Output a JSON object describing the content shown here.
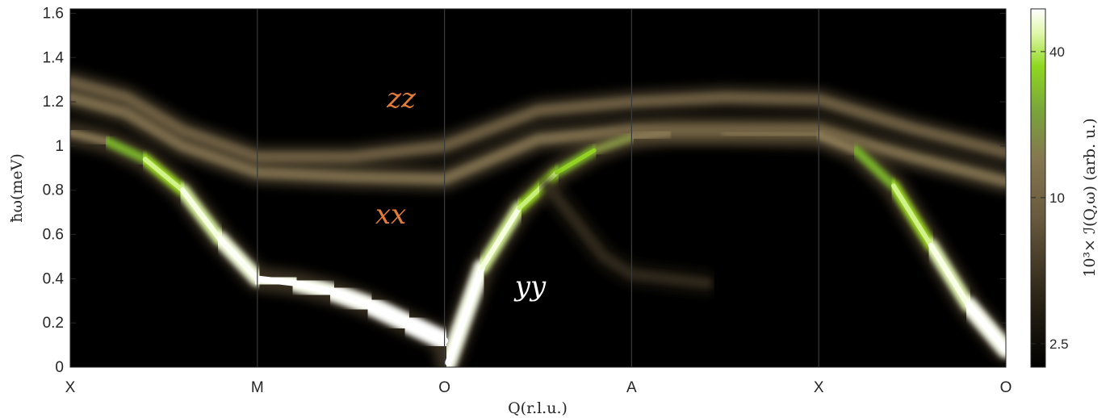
{
  "chart_data": {
    "type": "heatmap",
    "title": "",
    "xlabel": "Q(r.l.u.)",
    "ylabel": "ħω(meV)",
    "ylim": [
      0,
      1.62
    ],
    "y_ticks": [
      "0",
      "0.2",
      "0.4",
      "0.6",
      "0.8",
      "1",
      "1.2",
      "1.4",
      "1.6"
    ],
    "y_tick_values": [
      0,
      0.2,
      0.4,
      0.6,
      0.8,
      1.0,
      1.2,
      1.4,
      1.6
    ],
    "x_ticks": [
      "X",
      "M",
      "O",
      "A",
      "X",
      "O"
    ],
    "grid": "vertical lines at high-symmetry points",
    "colorbar": {
      "label": "10³× ℐ(Q,ω) (arb. u.)",
      "scale": "log",
      "range": [
        2,
        60
      ],
      "ticks": [
        "2.5",
        "10",
        "40"
      ],
      "tick_values": [
        2.5,
        10,
        40
      ],
      "colormap": [
        "#000000",
        "#3a3120",
        "#6e5e42",
        "#8a7a55",
        "#78b02a",
        "#a0e020",
        "#f4ffd8",
        "#ffffff"
      ]
    },
    "series": [
      {
        "name": "xx",
        "label_color": "#e07b39",
        "x": [
          0,
          0.3,
          0.6,
          1.0,
          1.5,
          2.0,
          2.5,
          3.0,
          3.5,
          4.0,
          4.5,
          5.0
        ],
        "y": [
          1.22,
          1.15,
          1.0,
          0.88,
          0.86,
          0.85,
          1.03,
          1.07,
          1.07,
          1.07,
          0.95,
          0.84
        ],
        "intensity": 8
      },
      {
        "name": "zz",
        "label_color": "#e07b39",
        "x": [
          0,
          0.3,
          0.6,
          1.0,
          1.5,
          2.0,
          2.5,
          3.0,
          3.5,
          4.0,
          4.5,
          5.0
        ],
        "y": [
          1.29,
          1.22,
          1.07,
          0.95,
          0.95,
          1.0,
          1.16,
          1.2,
          1.22,
          1.21,
          1.08,
          0.97
        ],
        "intensity": 6
      },
      {
        "name": "yy",
        "label_color": "#ffffff",
        "x": [
          0,
          0.2,
          0.4,
          0.6,
          0.8,
          1.0,
          1.2,
          1.4,
          1.6,
          1.8,
          2.0,
          2.02,
          2.2,
          2.4,
          2.6,
          2.8,
          3.0,
          3.2,
          3.5,
          4.0,
          4.2,
          4.4,
          4.6,
          4.8,
          5.0
        ],
        "y": [
          1.06,
          1.02,
          0.94,
          0.8,
          0.58,
          0.4,
          0.38,
          0.34,
          0.28,
          0.2,
          0.12,
          0.02,
          0.45,
          0.72,
          0.88,
          0.98,
          1.04,
          1.06,
          1.06,
          1.05,
          0.98,
          0.82,
          0.55,
          0.28,
          0.08
        ],
        "intensity": [
          6,
          10,
          18,
          28,
          36,
          45,
          48,
          52,
          56,
          60,
          60,
          60,
          36,
          26,
          18,
          12,
          9,
          8,
          7,
          7,
          10,
          18,
          28,
          40,
          60
        ]
      },
      {
        "name": "",
        "x": [
          2.55,
          2.7,
          2.85,
          3.0,
          3.2,
          3.4
        ],
        "y": [
          0.82,
          0.66,
          0.5,
          0.42,
          0.4,
          0.38
        ],
        "intensity": 3
      }
    ],
    "labels": [
      "xx",
      "zz",
      "yy"
    ]
  }
}
